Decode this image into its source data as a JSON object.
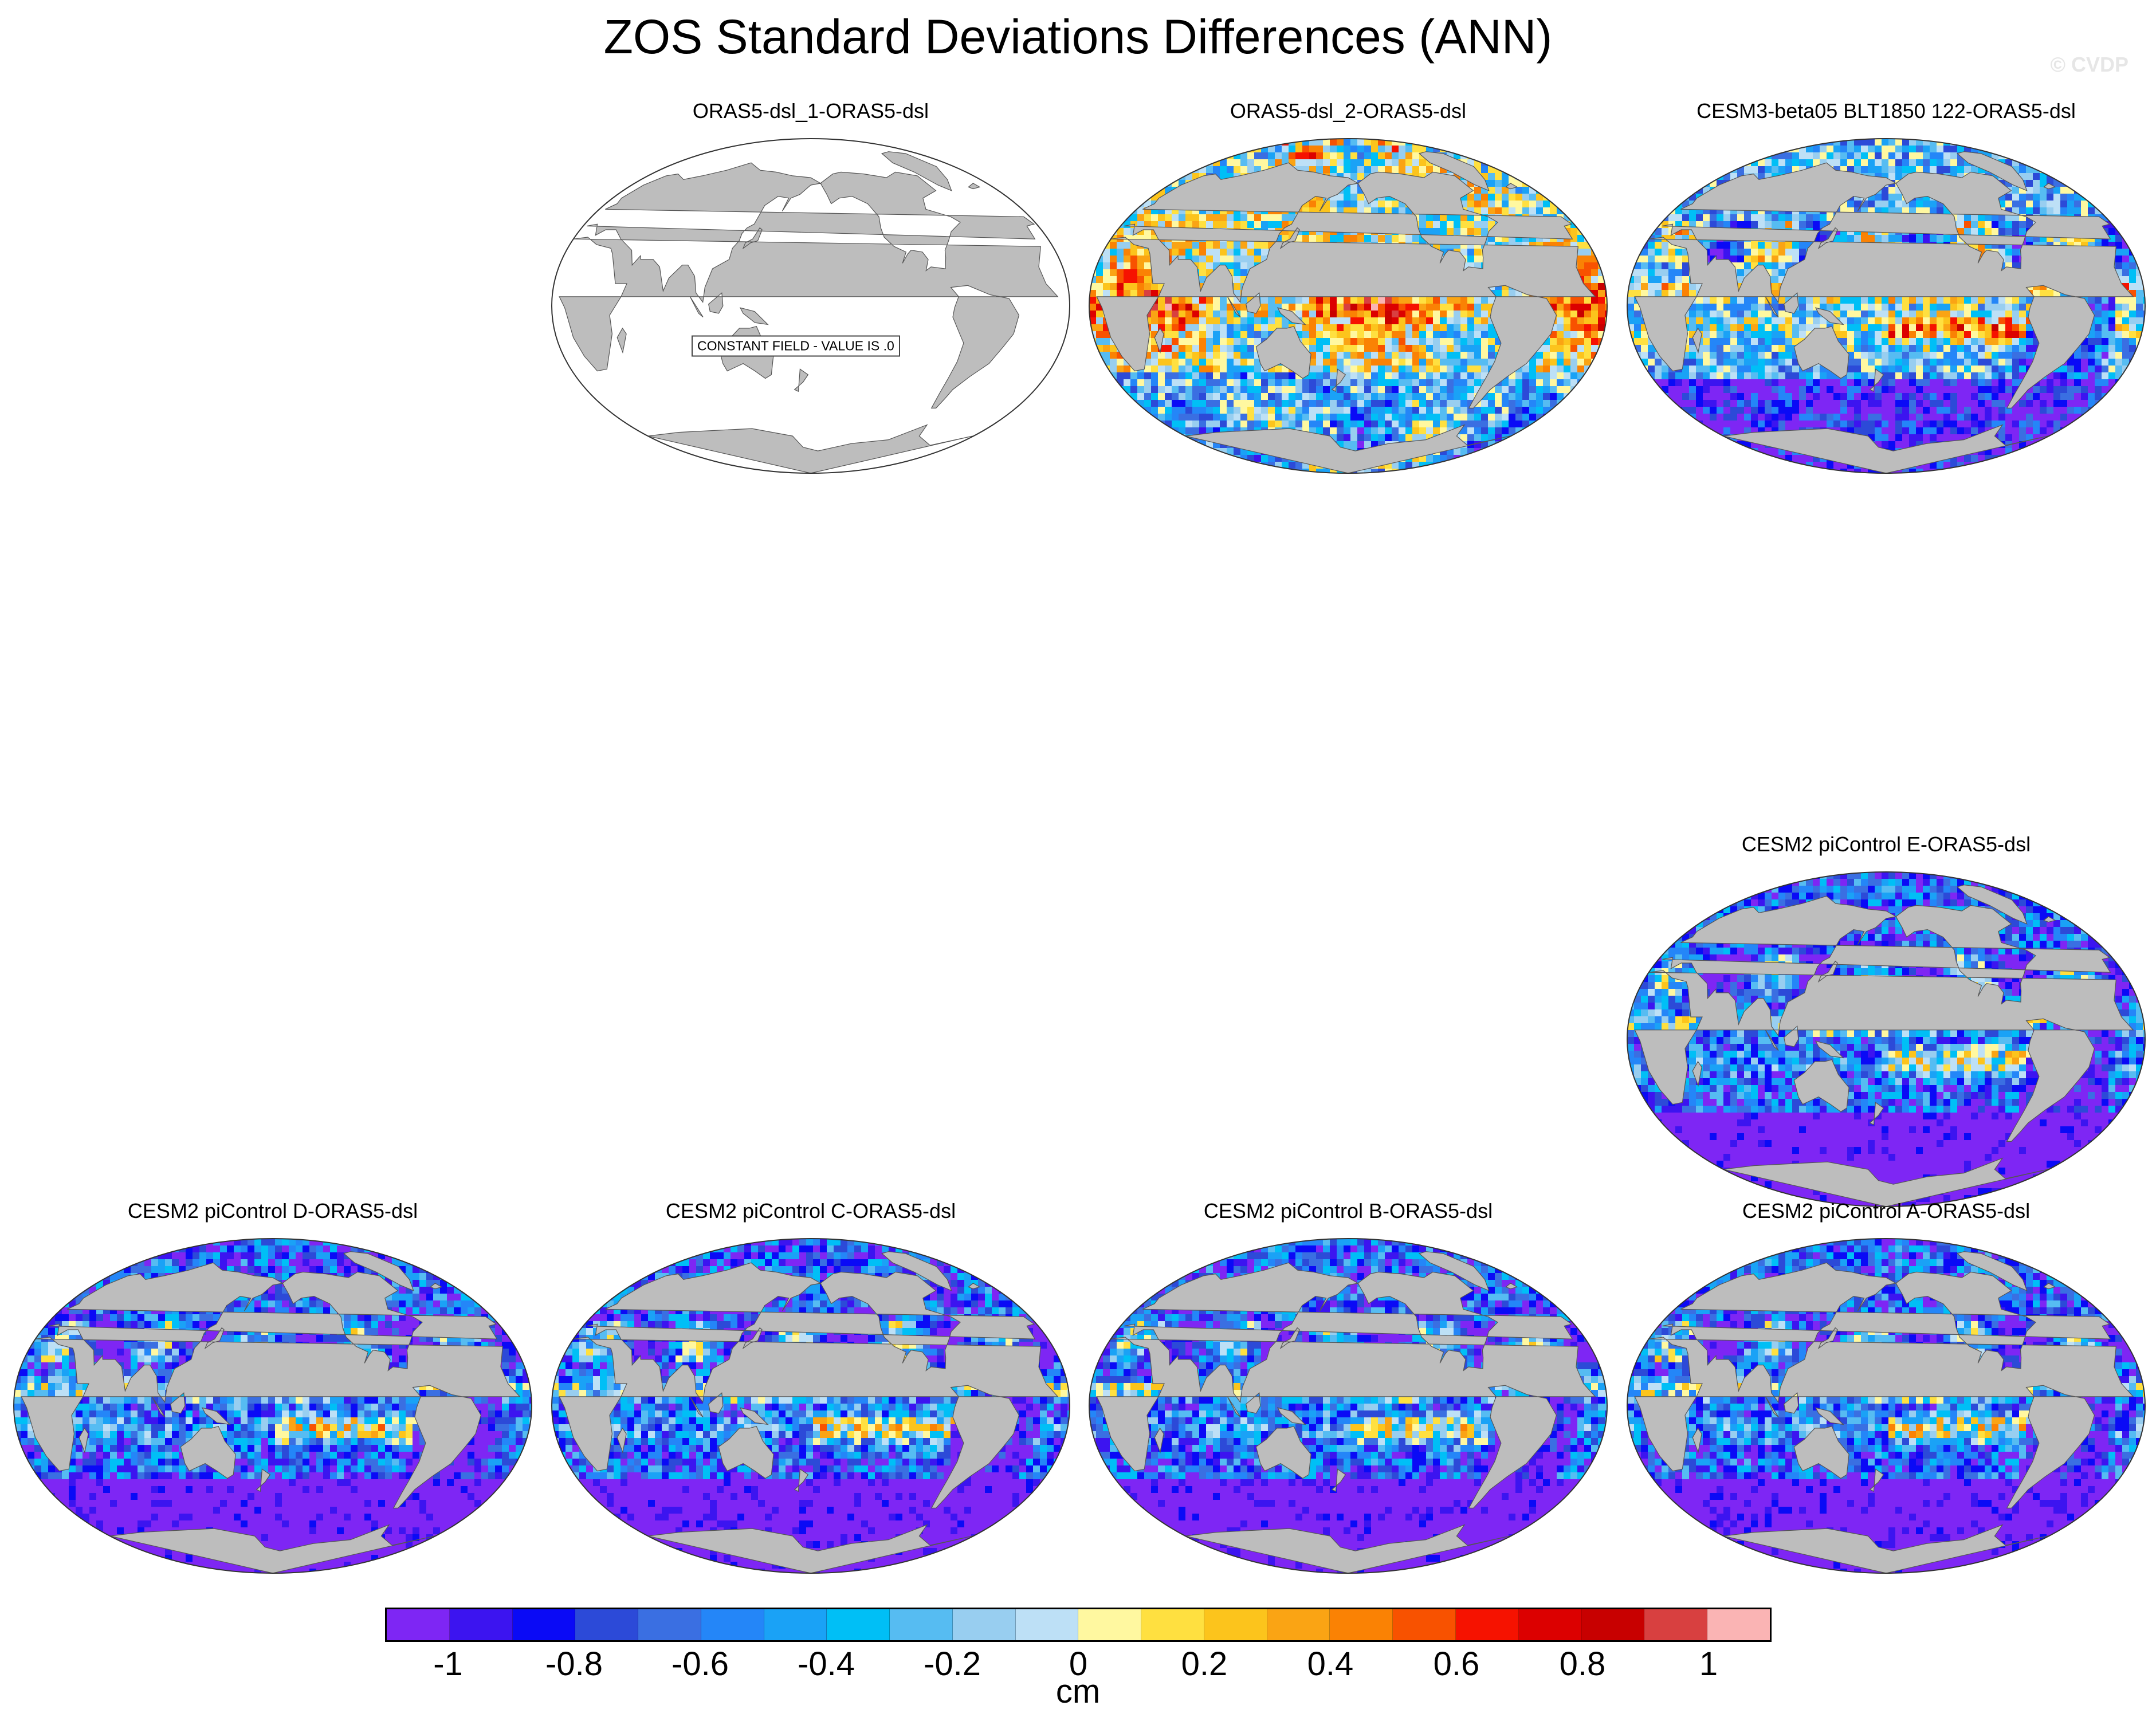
{
  "figure": {
    "title": "ZOS Standard Deviations Differences (ANN)",
    "watermark": "© CVDP"
  },
  "panels": [
    {
      "id": "p1",
      "title": "ORAS5-dsl_1-ORAS5-dsl",
      "constant_field": true,
      "note": "CONSTANT FIELD - VALUE IS .0"
    },
    {
      "id": "p2",
      "title": "ORAS5-dsl_2-ORAS5-dsl",
      "constant_field": false
    },
    {
      "id": "p3",
      "title": "CESM3-beta05 BLT1850 122-ORAS5-dsl",
      "constant_field": false
    },
    {
      "id": "p4",
      "title": "CESM2 piControl E-ORAS5-dsl",
      "constant_field": false
    },
    {
      "id": "p5",
      "title": "CESM2 piControl D-ORAS5-dsl",
      "constant_field": false
    },
    {
      "id": "p6",
      "title": "CESM2 piControl C-ORAS5-dsl",
      "constant_field": false
    },
    {
      "id": "p7",
      "title": "CESM2 piControl B-ORAS5-dsl",
      "constant_field": false
    },
    {
      "id": "p8",
      "title": "CESM2 piControl A-ORAS5-dsl",
      "constant_field": false
    }
  ],
  "colorbar": {
    "units": "cm",
    "tick_labels": [
      "-1",
      "-0.8",
      "-0.6",
      "-0.4",
      "-0.2",
      "0",
      "0.2",
      "0.4",
      "0.6",
      "0.8",
      "1"
    ],
    "colors": [
      "#7e26f4",
      "#3c14f0",
      "#0a0af6",
      "#2c4ad8",
      "#3a6fe2",
      "#2486f8",
      "#1aa2f6",
      "#00bff6",
      "#56bcf2",
      "#98cef0",
      "#bde0f6",
      "#fff8a0",
      "#ffe040",
      "#fcc41c",
      "#faa414",
      "#fa8204",
      "#f85200",
      "#f61200",
      "#dc0000",
      "#c80000",
      "#d84040",
      "#fab4b4"
    ]
  }
}
